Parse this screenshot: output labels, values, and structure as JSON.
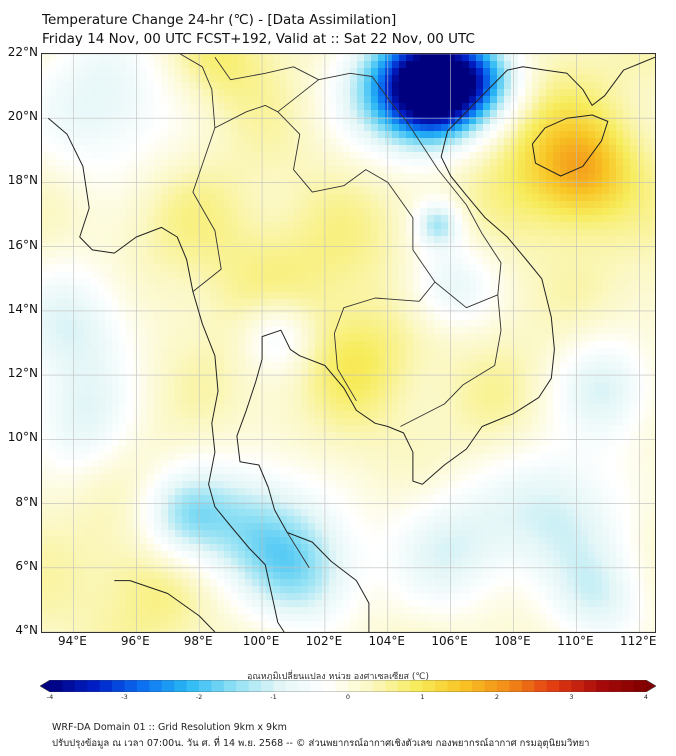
{
  "header": {
    "title": "Temperature Change 24-hr (℃) - [Data Assimilation]",
    "subtitle": "Friday 14 Nov, 00 UTC FCST+192, Valid at :: Sat 22 Nov, 00 UTC"
  },
  "map": {
    "lat_range": [
      4,
      22
    ],
    "lon_range": [
      93,
      112.5
    ],
    "lat_ticks": [
      "22°N",
      "20°N",
      "18°N",
      "16°N",
      "14°N",
      "12°N",
      "10°N",
      "8°N",
      "6°N",
      "4°N"
    ],
    "lat_values": [
      22,
      20,
      18,
      16,
      14,
      12,
      10,
      8,
      6,
      4
    ],
    "lon_ticks": [
      "94°E",
      "96°E",
      "98°E",
      "100°E",
      "102°E",
      "104°E",
      "106°E",
      "108°E",
      "110°E",
      "112°E"
    ],
    "lon_values": [
      94,
      96,
      98,
      100,
      102,
      104,
      106,
      108,
      110,
      112
    ],
    "grid": true,
    "field_base": 0.35,
    "anomalies": [
      {
        "lon": 105.5,
        "lat": 20.9,
        "value": -4.0,
        "r": 1.1
      },
      {
        "lon": 104.3,
        "lat": 21.0,
        "value": -1.6,
        "r": 1.4
      },
      {
        "lon": 107.0,
        "lat": 21.3,
        "value": -1.5,
        "r": 1.0
      },
      {
        "lon": 95.0,
        "lat": 20.5,
        "value": -0.9,
        "r": 1.8
      },
      {
        "lon": 94.0,
        "lat": 13.5,
        "value": -0.9,
        "r": 1.5
      },
      {
        "lon": 94.2,
        "lat": 10.5,
        "value": -0.7,
        "r": 1.2
      },
      {
        "lon": 99.8,
        "lat": 7.3,
        "value": -1.3,
        "r": 1.5
      },
      {
        "lon": 97.5,
        "lat": 7.6,
        "value": -1.0,
        "r": 1.0
      },
      {
        "lon": 101.5,
        "lat": 5.7,
        "value": -1.0,
        "r": 1.3
      },
      {
        "lon": 106.0,
        "lat": 6.6,
        "value": -0.9,
        "r": 1.5
      },
      {
        "lon": 109.5,
        "lat": 7.8,
        "value": -1.0,
        "r": 1.5
      },
      {
        "lon": 110.8,
        "lat": 5.0,
        "value": -0.8,
        "r": 1.2
      },
      {
        "lon": 106.0,
        "lat": 14.8,
        "value": -0.8,
        "r": 1.0
      },
      {
        "lon": 105.6,
        "lat": 16.7,
        "value": -1.1,
        "r": 0.5
      },
      {
        "lon": 111.0,
        "lat": 11.6,
        "value": -0.9,
        "r": 1.2
      },
      {
        "lon": 100.5,
        "lat": 13.2,
        "value": -0.6,
        "r": 0.8
      },
      {
        "lon": 110.2,
        "lat": 18.3,
        "value": 1.7,
        "r": 1.1
      },
      {
        "lon": 108.5,
        "lat": 19.5,
        "value": 0.9,
        "r": 1.5
      },
      {
        "lon": 98.5,
        "lat": 21.8,
        "value": 0.9,
        "r": 1.2
      },
      {
        "lon": 103.0,
        "lat": 12.5,
        "value": 0.9,
        "r": 1.2
      },
      {
        "lon": 100.0,
        "lat": 15.0,
        "value": 0.6,
        "r": 1.5
      },
      {
        "lon": 96.5,
        "lat": 5.5,
        "value": 0.8,
        "r": 1.2
      },
      {
        "lon": 102.5,
        "lat": 15.8,
        "value": 0.6,
        "r": 1.3
      },
      {
        "lon": 97.3,
        "lat": 17.0,
        "value": 0.6,
        "r": 1.4
      },
      {
        "lon": 107.5,
        "lat": 11.0,
        "value": 0.5,
        "r": 1.2
      }
    ],
    "coast_outline": [
      [
        93.2,
        20.0
      ],
      [
        93.8,
        19.5
      ],
      [
        94.3,
        18.5
      ],
      [
        94.5,
        17.2
      ],
      [
        94.2,
        16.3
      ],
      [
        94.6,
        15.9
      ],
      [
        95.3,
        15.8
      ],
      [
        96.0,
        16.3
      ],
      [
        96.8,
        16.6
      ],
      [
        97.3,
        16.3
      ],
      [
        97.6,
        15.6
      ],
      [
        97.8,
        14.6
      ],
      [
        98.1,
        13.6
      ],
      [
        98.5,
        12.6
      ],
      [
        98.6,
        11.5
      ],
      [
        98.4,
        10.5
      ],
      [
        98.5,
        9.6
      ],
      [
        98.3,
        8.6
      ],
      [
        98.5,
        7.9
      ],
      [
        99.0,
        7.3
      ],
      [
        99.6,
        6.6
      ],
      [
        100.1,
        6.1
      ],
      [
        100.3,
        5.2
      ],
      [
        100.5,
        4.3
      ],
      [
        100.7,
        4.0
      ]
    ],
    "coast_east_peninsula": [
      [
        103.4,
        4.0
      ],
      [
        103.4,
        4.9
      ],
      [
        103.0,
        5.6
      ],
      [
        102.2,
        6.2
      ],
      [
        101.6,
        6.8
      ],
      [
        100.8,
        7.1
      ],
      [
        100.4,
        7.8
      ],
      [
        100.2,
        8.5
      ],
      [
        99.9,
        9.2
      ],
      [
        99.3,
        9.3
      ],
      [
        99.2,
        10.1
      ],
      [
        99.5,
        10.9
      ],
      [
        99.8,
        11.8
      ],
      [
        100.0,
        12.5
      ],
      [
        100.0,
        13.2
      ],
      [
        100.6,
        13.4
      ],
      [
        100.9,
        12.8
      ],
      [
        101.2,
        12.6
      ],
      [
        102.0,
        12.3
      ],
      [
        102.6,
        11.6
      ],
      [
        103.0,
        10.9
      ],
      [
        103.6,
        10.5
      ],
      [
        104.0,
        10.4
      ],
      [
        104.5,
        10.2
      ],
      [
        104.8,
        9.6
      ],
      [
        104.8,
        8.7
      ],
      [
        105.1,
        8.6
      ],
      [
        105.8,
        9.2
      ],
      [
        106.5,
        9.7
      ],
      [
        107.0,
        10.4
      ],
      [
        108.0,
        10.8
      ],
      [
        108.8,
        11.3
      ],
      [
        109.2,
        11.9
      ],
      [
        109.3,
        12.8
      ],
      [
        109.2,
        13.8
      ],
      [
        108.9,
        15.0
      ],
      [
        108.4,
        15.6
      ],
      [
        107.8,
        16.3
      ],
      [
        107.1,
        16.9
      ],
      [
        106.5,
        17.6
      ],
      [
        106.0,
        18.2
      ],
      [
        105.7,
        18.8
      ],
      [
        105.9,
        19.6
      ],
      [
        106.6,
        20.3
      ],
      [
        107.2,
        20.9
      ],
      [
        107.8,
        21.5
      ],
      [
        108.3,
        21.6
      ],
      [
        109.0,
        21.5
      ],
      [
        109.7,
        21.4
      ],
      [
        110.2,
        20.9
      ],
      [
        110.5,
        20.4
      ],
      [
        110.9,
        20.7
      ],
      [
        111.5,
        21.5
      ],
      [
        112.5,
        21.9
      ]
    ],
    "hainan_outline": [
      [
        108.6,
        19.2
      ],
      [
        108.7,
        18.6
      ],
      [
        109.5,
        18.2
      ],
      [
        110.2,
        18.5
      ],
      [
        110.8,
        19.3
      ],
      [
        111.0,
        19.9
      ],
      [
        110.5,
        20.1
      ],
      [
        109.7,
        20.0
      ],
      [
        109.0,
        19.7
      ],
      [
        108.6,
        19.2
      ]
    ],
    "borsumatra_outline": [
      [
        95.3,
        5.6
      ],
      [
        95.8,
        5.6
      ],
      [
        97.0,
        5.2
      ],
      [
        98.0,
        4.5
      ],
      [
        98.5,
        4.0
      ]
    ],
    "inland_borders": [
      [
        [
          97.8,
          14.6
        ],
        [
          98.7,
          15.3
        ],
        [
          98.5,
          16.5
        ],
        [
          97.8,
          17.7
        ],
        [
          98.5,
          19.7
        ],
        [
          99.5,
          20.2
        ],
        [
          100.1,
          20.4
        ],
        [
          100.5,
          20.2
        ]
      ],
      [
        [
          100.5,
          20.2
        ],
        [
          101.2,
          19.5
        ],
        [
          101.0,
          18.4
        ],
        [
          101.6,
          17.7
        ],
        [
          102.6,
          17.9
        ],
        [
          103.3,
          18.4
        ],
        [
          104.0,
          18.0
        ],
        [
          104.8,
          16.9
        ],
        [
          104.8,
          15.9
        ],
        [
          105.5,
          14.9
        ],
        [
          105.0,
          14.3
        ]
      ],
      [
        [
          105.0,
          14.3
        ],
        [
          103.6,
          14.4
        ],
        [
          102.6,
          14.1
        ],
        [
          102.3,
          13.3
        ],
        [
          102.4,
          12.2
        ]
      ],
      [
        [
          102.4,
          12.2
        ],
        [
          103.0,
          11.2
        ]
      ],
      [
        [
          100.5,
          20.2
        ],
        [
          101.8,
          21.2
        ],
        [
          102.8,
          21.4
        ],
        [
          103.5,
          21.3
        ],
        [
          104.1,
          20.5
        ],
        [
          104.6,
          19.9
        ],
        [
          105.2,
          19.0
        ],
        [
          105.6,
          18.4
        ],
        [
          106.5,
          17.3
        ],
        [
          107.0,
          16.4
        ],
        [
          107.6,
          15.5
        ],
        [
          107.5,
          14.5
        ]
      ],
      [
        [
          107.5,
          14.5
        ],
        [
          106.5,
          14.1
        ],
        [
          105.5,
          14.9
        ]
      ],
      [
        [
          107.5,
          14.5
        ],
        [
          107.6,
          13.4
        ],
        [
          107.4,
          12.3
        ],
        [
          106.4,
          11.7
        ],
        [
          105.8,
          11.1
        ],
        [
          105.0,
          10.7
        ],
        [
          104.4,
          10.4
        ]
      ],
      [
        [
          100.8,
          7.1
        ],
        [
          101.5,
          6.0
        ]
      ],
      [
        [
          98.5,
          21.9
        ],
        [
          99.0,
          21.2
        ],
        [
          100.1,
          21.4
        ],
        [
          101.0,
          21.6
        ],
        [
          101.8,
          21.2
        ]
      ],
      [
        [
          97.4,
          22.0
        ],
        [
          98.1,
          21.6
        ],
        [
          98.4,
          20.9
        ],
        [
          98.5,
          19.7
        ]
      ]
    ]
  },
  "colorbar": {
    "title": "อุณหภูมิเปลี่ยนแปลง หน่วย องศาเซลเซียส (℃)",
    "min": -4,
    "max": 4,
    "tick_labels": [
      "-4",
      "-3",
      "-2",
      "-1",
      "0",
      "1",
      "2",
      "3",
      "4"
    ],
    "tick_values": [
      -4,
      -3,
      -2,
      -1,
      0,
      1,
      2,
      3,
      4
    ],
    "colors": [
      "#00007f",
      "#0020c8",
      "#0a6ff0",
      "#2ab8f5",
      "#8ee0f4",
      "#e3f6f7",
      "#ffffff",
      "#fbf8c5",
      "#f7ec5c",
      "#f8c424",
      "#f28a17",
      "#e23a12",
      "#a80a0a",
      "#7f0000"
    ]
  },
  "footer": {
    "line1": "WRF-DA Domain 01 :: Grid Resolution 9km x 9km",
    "line2": "ปรับปรุงข้อมูล ณ เวลา 07:00น. วัน ศ. ที่ 14 พ.ย. 2568 -- © ส่วนพยากรณ์อากาศเชิงตัวเลข กองพยากรณ์อากาศ กรมอุตุนิยมวิทยา"
  }
}
